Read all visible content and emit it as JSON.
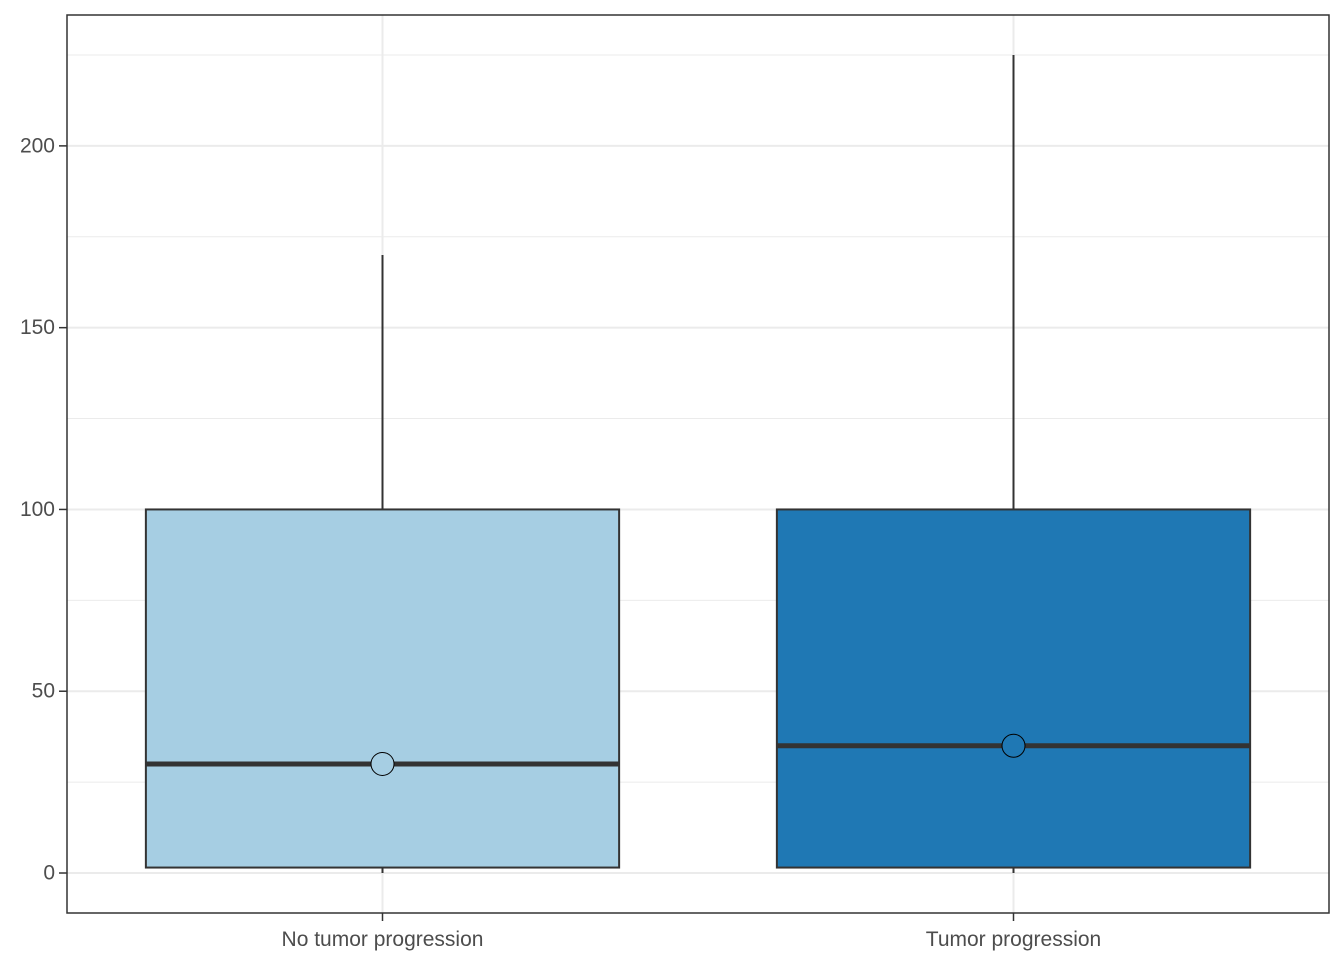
{
  "chart_data": {
    "type": "boxplot",
    "categories": [
      "No tumor progression",
      "Tumor progression"
    ],
    "boxes": [
      {
        "category": "No tumor progression",
        "min": 0,
        "q1": 1.5,
        "median": 30,
        "q3": 100,
        "max": 170,
        "mean": 30,
        "fill": "#a6cee3"
      },
      {
        "category": "Tumor progression",
        "min": 0,
        "q1": 1.5,
        "median": 35,
        "q3": 100,
        "max": 225,
        "mean": 35,
        "fill": "#1f78b4"
      }
    ],
    "title": "",
    "xlabel": "",
    "ylabel": "",
    "ylim": [
      -11,
      236
    ],
    "yticks": [
      0,
      50,
      100,
      150,
      200
    ],
    "yticks_minor": [
      25,
      75,
      125,
      175,
      225
    ],
    "grid": true,
    "legend": "none",
    "colors": {
      "grid": "#ebebeb",
      "axis": "#333333",
      "text": "#4d4d4d",
      "line": "#333333"
    }
  }
}
